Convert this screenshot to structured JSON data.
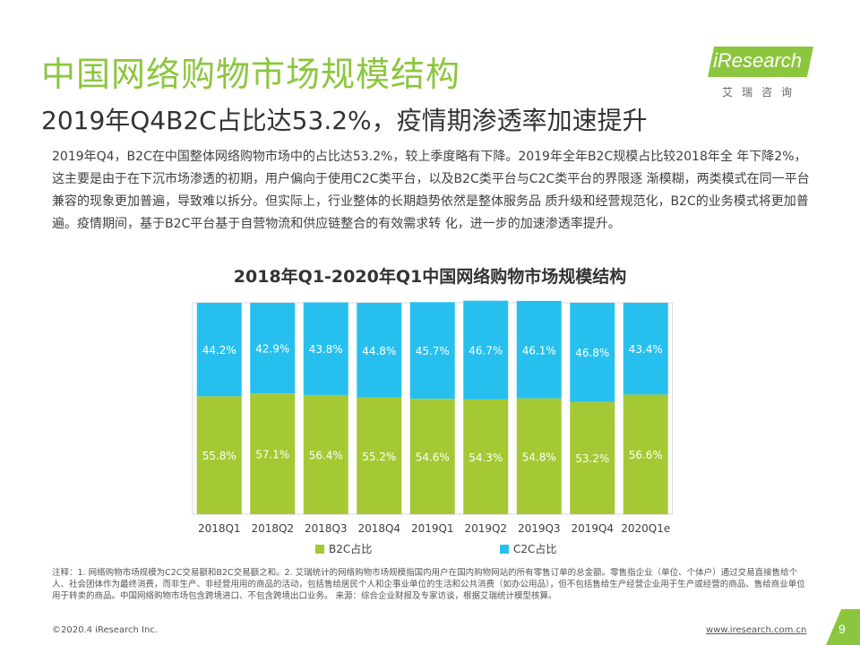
{
  "header": {
    "title": "中国网络购物市场规模结构",
    "subtitle": "2019年Q4B2C占比达53.2%，疫情期渗透率加速提升",
    "logo": {
      "brand": "iResearch",
      "tagline": "艾瑞咨询"
    }
  },
  "body": {
    "paragraph": "2019年Q4，B2C在中国整体网络购物市场中的占比达53.2%，较上季度略有下降。2019年全年B2C规模占比较2018年全 年下降2%，这主要是由于在下沉市场渗透的初期，用户偏向于使用C2C类平台，以及B2C类平台与C2C类平台的界限逐 渐模糊，两类模式在同一平台兼容的现象更加普遍，导致难以拆分。但实际上，行业整体的长期趋势依然是整体服务品 质升级和经营规范化，B2C的业务模式将更加普遍。疫情期间，基于B2C平台基于自营物流和供应链整合的有效需求转 化，进一步的加速渗透率提升。"
  },
  "chart_data": {
    "type": "bar",
    "stacked": true,
    "title": "2018年Q1-2020年Q1中国网络购物市场规模结构",
    "categories": [
      "2018Q1",
      "2018Q2",
      "2018Q3",
      "2018Q4",
      "2019Q1",
      "2019Q2",
      "2019Q3",
      "2019Q4",
      "2020Q1e"
    ],
    "series": [
      {
        "name": "B2C占比",
        "color": "#a5c934",
        "values": [
          55.8,
          57.1,
          56.4,
          55.2,
          54.6,
          54.3,
          54.8,
          53.2,
          56.6
        ]
      },
      {
        "name": "C2C占比",
        "color": "#27c0ee",
        "values": [
          44.2,
          42.9,
          43.8,
          44.8,
          45.7,
          46.7,
          46.1,
          46.8,
          43.4
        ]
      }
    ],
    "value_labels": {
      "B2C占比": [
        "55.8%",
        "57.1%",
        "56.4%",
        "55.2%",
        "54.6%",
        "54.3%",
        "54.8%",
        "53.2%",
        "56.6%"
      ],
      "C2C占比": [
        "44.2%",
        "42.9%",
        "43.8%",
        "44.8%",
        "45.7%",
        "46.7%",
        "46.1%",
        "46.8%",
        "43.4%"
      ]
    },
    "ylim": [
      0,
      100
    ],
    "legend": "bottom",
    "grid": false
  },
  "notes": "注释：1. 网络购物市场规模为C2C交易额和B2C交易额之和。2. 艾瑞统计的网络购物市场规模指国内用户在国内购物网站的所有零售订单的总金额。零售指企业（单位、个体户）通过交易直接售给个人、社会团体作为最终消费，而非生产、非经营用用的商品的活动，包括售给居民个人和企事业单位的生活和公共消费（如办公用品），但不包括售给生产经营企业用于生产或经营的商品、售给商业单位用于转卖的商品。中国网络购物市场包含跨境进口、不包含跨境出口业务。 来源：综合企业财报及专家访谈，根据艾瑞统计模型核算。",
  "footer": {
    "copyright": "©2020.4 iResearch Inc.",
    "url": "www.iresearch.com.cn",
    "page": "9"
  }
}
